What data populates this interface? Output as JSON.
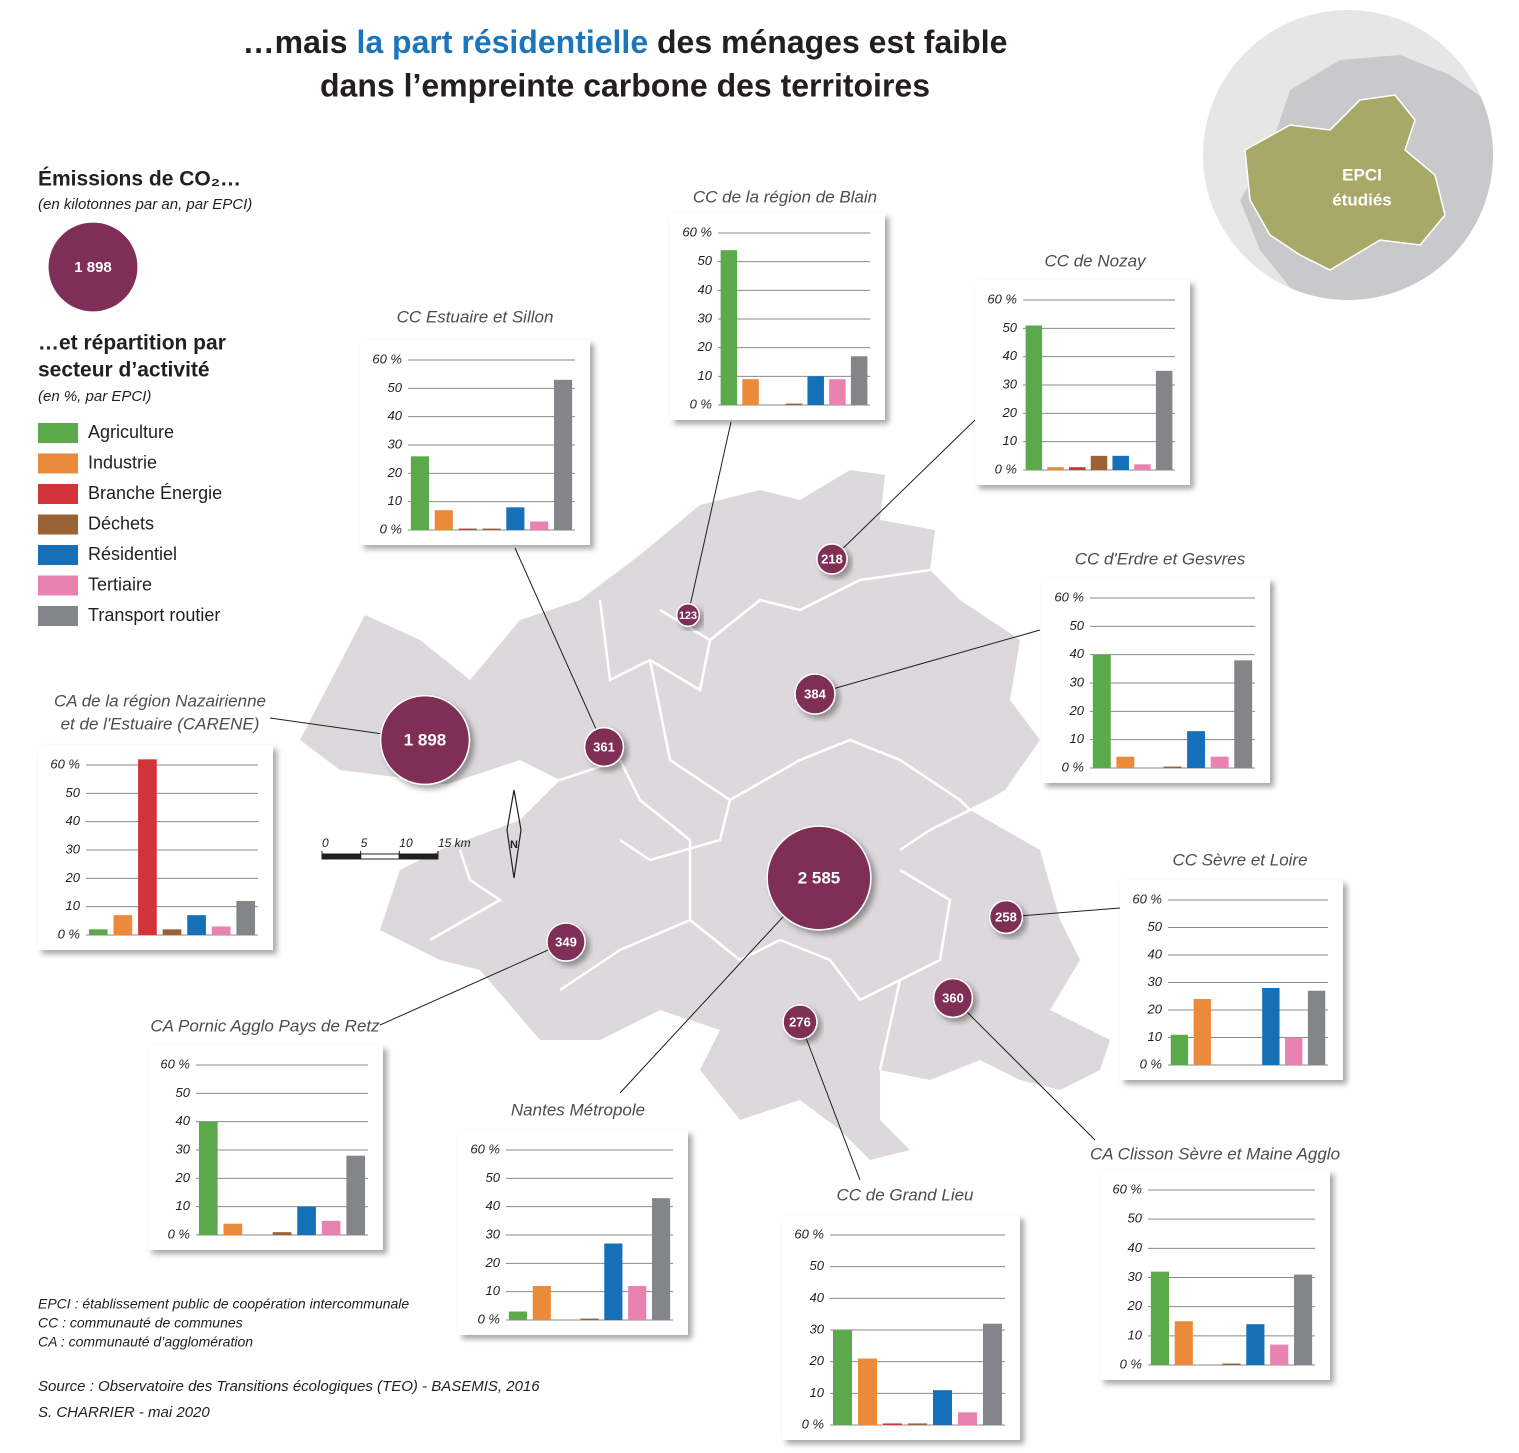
{
  "title": {
    "line1": [
      "…mais ",
      "la part résidentielle",
      " des ménages est faible"
    ],
    "line2": "dans l’empreinte carbone des territoires"
  },
  "legend": {
    "title": "Émissions de CO₂…",
    "subtitle": "(en kilotonnes par an, par EPCI)",
    "bubble": {
      "value": 1898,
      "label": "1 898"
    },
    "sectors_title": [
      "…et répartition par",
      "secteur d’activité"
    ],
    "sectors_subtitle": "(en %, par EPCI)",
    "sectors": [
      {
        "name": "Agriculture",
        "color": "#5aaa4b"
      },
      {
        "name": "Industrie",
        "color": "#ec8a3c"
      },
      {
        "name": "Branche Énergie",
        "color": "#d2323a"
      },
      {
        "name": "Déchets",
        "color": "#9a6336"
      },
      {
        "name": "Résidentiel",
        "color": "#1670b8"
      },
      {
        "name": "Tertiaire",
        "color": "#e882b0"
      },
      {
        "name": "Transport routier",
        "color": "#848588"
      }
    ]
  },
  "inset": {
    "label": [
      "EPCI",
      "étudiés"
    ]
  },
  "scale": {
    "ticks": [
      0,
      5,
      10,
      {
        "value": 15,
        "label": "15 km"
      }
    ],
    "north": "N"
  },
  "notes": [
    "EPCI : établissement public de coopération intercommunale",
    "CC : communauté de communes",
    "CA : communauté d’agglomération"
  ],
  "source": "Source : Observatoire des Transitions écologiques (TEO) - BASEMIS, 2016",
  "author": "S. CHARRIER - mai 2020",
  "chart_data": [
    {
      "type": "bar",
      "title": "CC Estuaire et Sillon",
      "emissions": {
        "value": 361,
        "label": "361"
      },
      "values": [
        26,
        7,
        0.5,
        0.5,
        8,
        3,
        53
      ],
      "ylim": [
        0,
        60
      ],
      "yticks": [
        {
          "value": 0,
          "label": "0 %"
        },
        10,
        20,
        30,
        40,
        50,
        {
          "value": 60,
          "label": "60 %"
        }
      ],
      "grid": true
    },
    {
      "type": "bar",
      "title": "CC de la région de Blain",
      "emissions": {
        "value": 123,
        "label": "123"
      },
      "values": [
        54,
        9,
        0,
        0.5,
        10,
        9,
        17
      ],
      "ylim": [
        0,
        60
      ],
      "yticks": [
        {
          "value": 0,
          "label": "0 %"
        },
        10,
        20,
        30,
        40,
        50,
        {
          "value": 60,
          "label": "60 %"
        }
      ],
      "grid": true
    },
    {
      "type": "bar",
      "title": "CC de Nozay",
      "emissions": {
        "value": 218,
        "label": "218"
      },
      "values": [
        51,
        1,
        1,
        5,
        5,
        2,
        35
      ],
      "ylim": [
        0,
        60
      ],
      "yticks": [
        {
          "value": 0,
          "label": "0 %"
        },
        10,
        20,
        30,
        40,
        50,
        {
          "value": 60,
          "label": "60 %"
        }
      ],
      "grid": true
    },
    {
      "type": "bar",
      "title": "CC d'Erdre et Gesvres",
      "emissions": {
        "value": 384,
        "label": "384"
      },
      "values": [
        40,
        4,
        0,
        0.5,
        13,
        4,
        38
      ],
      "ylim": [
        0,
        60
      ],
      "yticks": [
        {
          "value": 0,
          "label": "0 %"
        },
        10,
        20,
        30,
        40,
        50,
        {
          "value": 60,
          "label": "60 %"
        }
      ],
      "grid": true
    },
    {
      "type": "bar",
      "title": [
        "CA de la région Nazairienne",
        "et de l'Estuaire (CARENE)"
      ],
      "emissions": {
        "value": 1898,
        "label": "1 898"
      },
      "values": [
        2,
        7,
        62,
        2,
        7,
        3,
        12
      ],
      "ylim": [
        0,
        60
      ],
      "yticks": [
        {
          "value": 0,
          "label": "0 %"
        },
        10,
        20,
        30,
        40,
        50,
        {
          "value": 60,
          "label": "60 %"
        }
      ],
      "grid": true
    },
    {
      "type": "bar",
      "title": "CC Sèvre et Loire",
      "emissions": {
        "value": 258,
        "label": "258"
      },
      "values": [
        11,
        24,
        0,
        0,
        28,
        10,
        27
      ],
      "ylim": [
        0,
        60
      ],
      "yticks": [
        {
          "value": 0,
          "label": "0 %"
        },
        10,
        20,
        30,
        40,
        50,
        {
          "value": 60,
          "label": "60 %"
        }
      ],
      "grid": true
    },
    {
      "type": "bar",
      "title": "CA Pornic Agglo Pays de Retz",
      "emissions": {
        "value": 349,
        "label": "349"
      },
      "values": [
        40,
        4,
        0,
        1,
        10,
        5,
        28
      ],
      "ylim": [
        0,
        60
      ],
      "yticks": [
        {
          "value": 0,
          "label": "0 %"
        },
        10,
        20,
        30,
        40,
        50,
        {
          "value": 60,
          "label": "60 %"
        }
      ],
      "grid": true
    },
    {
      "type": "bar",
      "title": "Nantes Métropole",
      "emissions": {
        "value": 2585,
        "label": "2 585"
      },
      "values": [
        3,
        12,
        0,
        0.5,
        27,
        12,
        43
      ],
      "ylim": [
        0,
        60
      ],
      "yticks": [
        {
          "value": 0,
          "label": "0 %"
        },
        10,
        20,
        30,
        40,
        50,
        {
          "value": 60,
          "label": "60 %"
        }
      ],
      "grid": true
    },
    {
      "type": "bar",
      "title": "CC de Grand Lieu",
      "emissions": {
        "value": 276,
        "label": "276"
      },
      "values": [
        30,
        21,
        0.5,
        0.5,
        11,
        4,
        32
      ],
      "ylim": [
        0,
        60
      ],
      "yticks": [
        {
          "value": 0,
          "label": "0 %"
        },
        10,
        20,
        30,
        40,
        50,
        {
          "value": 60,
          "label": "60 %"
        }
      ],
      "grid": true
    },
    {
      "type": "bar",
      "title": "CA Clisson Sèvre et Maine Agglo",
      "emissions": {
        "value": 360,
        "label": "360"
      },
      "values": [
        32,
        15,
        0,
        0.5,
        14,
        7,
        31
      ],
      "ylim": [
        0,
        60
      ],
      "yticks": [
        {
          "value": 0,
          "label": "0 %"
        },
        10,
        20,
        30,
        40,
        50,
        {
          "value": 60,
          "label": "60 %"
        }
      ],
      "grid": true
    }
  ]
}
